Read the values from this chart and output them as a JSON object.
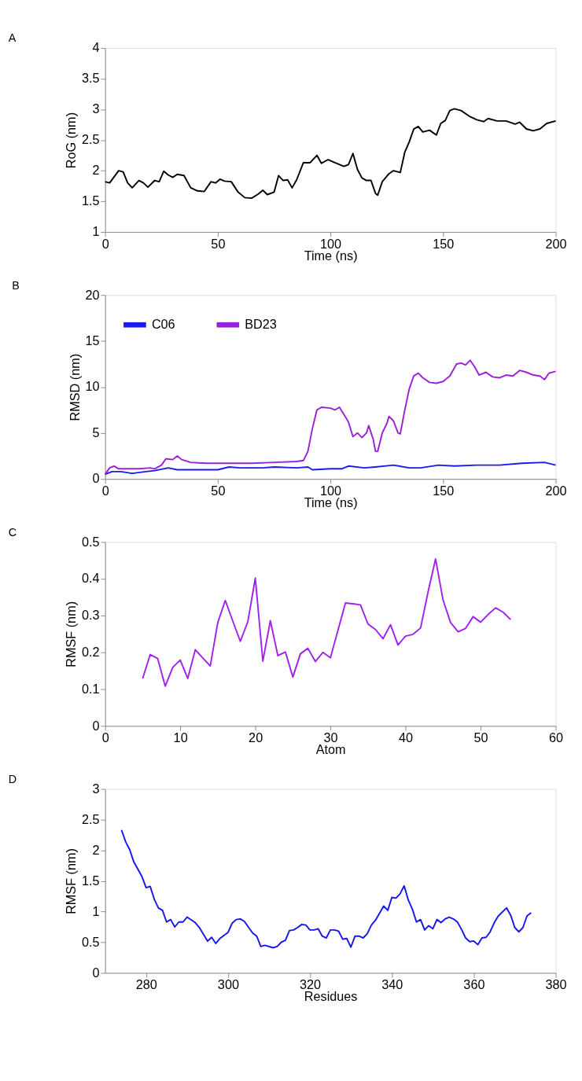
{
  "chart_data": [
    {
      "type": "line",
      "title": "A",
      "xlabel": "Time (ns)",
      "ylabel": "RoG (nm)",
      "xlim": [
        0,
        200
      ],
      "ylim": [
        1,
        4
      ],
      "xticks": [
        0,
        50,
        100,
        150,
        200
      ],
      "yticks": [
        1,
        1.5,
        2,
        2.5,
        3,
        3.5,
        4
      ],
      "grid": false,
      "legend": false,
      "series": [
        {
          "color": "#000000",
          "x": [
            0,
            2,
            4,
            6,
            8,
            10,
            12,
            15,
            17,
            19,
            22,
            24,
            26,
            28,
            30,
            32,
            35,
            38,
            41,
            44,
            47,
            49,
            51,
            53,
            56,
            59,
            62,
            65,
            68,
            70,
            72,
            75,
            77,
            79,
            81,
            83,
            85,
            88,
            91,
            94,
            96,
            99,
            102,
            106,
            108,
            110,
            112,
            114,
            116,
            118,
            120,
            121,
            123,
            126,
            128,
            131,
            133,
            135,
            137,
            139,
            141,
            144,
            147,
            149,
            151,
            153,
            155,
            158,
            162,
            165,
            168,
            170,
            174,
            178,
            182,
            184,
            187,
            190,
            193,
            196,
            200
          ],
          "values": [
            1.82,
            1.8,
            1.9,
            2.0,
            1.98,
            1.8,
            1.72,
            1.84,
            1.8,
            1.73,
            1.84,
            1.82,
            1.99,
            1.93,
            1.89,
            1.94,
            1.92,
            1.72,
            1.67,
            1.66,
            1.82,
            1.8,
            1.86,
            1.83,
            1.82,
            1.65,
            1.56,
            1.55,
            1.62,
            1.68,
            1.61,
            1.65,
            1.92,
            1.84,
            1.85,
            1.72,
            1.85,
            2.13,
            2.13,
            2.25,
            2.12,
            2.18,
            2.13,
            2.07,
            2.1,
            2.28,
            2.02,
            1.88,
            1.84,
            1.84,
            1.63,
            1.6,
            1.82,
            1.95,
            2.0,
            1.97,
            2.3,
            2.47,
            2.68,
            2.72,
            2.63,
            2.66,
            2.58,
            2.77,
            2.82,
            2.98,
            3.01,
            2.98,
            2.88,
            2.83,
            2.8,
            2.85,
            2.81,
            2.81,
            2.76,
            2.79,
            2.68,
            2.65,
            2.68,
            2.77,
            2.81
          ]
        }
      ]
    },
    {
      "type": "line",
      "title": "B",
      "xlabel": "Time (ns)",
      "ylabel": "RMSD (nm)",
      "xlim": [
        0,
        200
      ],
      "ylim": [
        0,
        20
      ],
      "xticks": [
        0,
        50,
        100,
        150,
        200
      ],
      "yticks": [
        0,
        5,
        10,
        15,
        20
      ],
      "grid": false,
      "legend": "top left",
      "series": [
        {
          "name": "C06",
          "color": "#1a1aee",
          "x": [
            0,
            3,
            7,
            12,
            18,
            22,
            28,
            32,
            40,
            50,
            55,
            60,
            70,
            75,
            85,
            90,
            92,
            100,
            105,
            108,
            115,
            120,
            128,
            135,
            140,
            148,
            155,
            165,
            175,
            185,
            195,
            200
          ],
          "values": [
            0.5,
            0.8,
            0.8,
            0.6,
            0.8,
            0.9,
            1.2,
            1.0,
            1.0,
            1.0,
            1.3,
            1.2,
            1.2,
            1.3,
            1.2,
            1.3,
            1.0,
            1.1,
            1.1,
            1.4,
            1.2,
            1.3,
            1.5,
            1.2,
            1.2,
            1.5,
            1.4,
            1.5,
            1.5,
            1.7,
            1.8,
            1.5
          ]
        },
        {
          "name": "BD23",
          "color": "#9b1fd8",
          "x": [
            0,
            2,
            4,
            6,
            10,
            15,
            20,
            22,
            25,
            27,
            30,
            32,
            34,
            38,
            45,
            55,
            65,
            75,
            85,
            88,
            90,
            92,
            94,
            96,
            100,
            102,
            104,
            106,
            108,
            110,
            112,
            114,
            116,
            117,
            119,
            120,
            121,
            123,
            125,
            126,
            128,
            130,
            131,
            133,
            135,
            137,
            139,
            141,
            144,
            147,
            150,
            153,
            156,
            158,
            160,
            162,
            164,
            166,
            169,
            172,
            175,
            178,
            181,
            184,
            187,
            190,
            193,
            195,
            197,
            200
          ],
          "values": [
            0.5,
            1.2,
            1.4,
            1.1,
            1.1,
            1.1,
            1.2,
            1.1,
            1.5,
            2.2,
            2.1,
            2.5,
            2.1,
            1.8,
            1.7,
            1.7,
            1.7,
            1.8,
            1.9,
            2.0,
            3.0,
            5.5,
            7.5,
            7.8,
            7.7,
            7.5,
            7.8,
            7.0,
            6.2,
            4.6,
            5.0,
            4.5,
            5.0,
            5.8,
            4.3,
            3.0,
            3.0,
            5.0,
            6.0,
            6.8,
            6.3,
            5.0,
            4.9,
            7.5,
            9.8,
            11.2,
            11.5,
            11.0,
            10.5,
            10.4,
            10.6,
            11.2,
            12.5,
            12.6,
            12.4,
            12.9,
            12.2,
            11.3,
            11.6,
            11.1,
            11.0,
            11.3,
            11.2,
            11.8,
            11.6,
            11.3,
            11.2,
            10.8,
            11.5,
            11.7
          ]
        }
      ]
    },
    {
      "type": "line",
      "title": "C",
      "xlabel": "Atom",
      "ylabel": "RMSF (nm)",
      "xlim": [
        0,
        60
      ],
      "ylim": [
        0,
        0.5
      ],
      "xticks": [
        0,
        10,
        20,
        30,
        40,
        50,
        60
      ],
      "yticks": [
        0,
        0.1,
        0.2,
        0.3,
        0.4,
        0.5
      ],
      "grid": false,
      "legend": false,
      "series": [
        {
          "color": "#a020f0",
          "x": [
            5,
            6,
            7,
            8,
            9,
            10,
            11,
            12,
            13,
            14,
            15,
            16,
            17,
            18,
            19,
            20,
            21,
            22,
            23,
            24,
            25,
            26,
            27,
            28,
            29,
            30,
            31,
            32,
            33,
            34,
            35,
            36,
            37,
            38,
            39,
            40,
            41,
            42,
            43,
            44,
            45,
            46,
            47,
            48,
            49,
            50,
            51,
            52,
            53,
            54
          ],
          "values": [
            0.129,
            0.194,
            0.183,
            0.108,
            0.159,
            0.179,
            0.129,
            0.207,
            0.185,
            0.163,
            0.281,
            0.341,
            0.285,
            0.23,
            0.283,
            0.402,
            0.176,
            0.286,
            0.191,
            0.201,
            0.133,
            0.196,
            0.211,
            0.175,
            0.2,
            0.185,
            0.26,
            0.334,
            0.332,
            0.329,
            0.277,
            0.262,
            0.237,
            0.275,
            0.22,
            0.244,
            0.249,
            0.266,
            0.364,
            0.454,
            0.342,
            0.281,
            0.256,
            0.265,
            0.297,
            0.282,
            0.303,
            0.321,
            0.309,
            0.289
          ]
        }
      ]
    },
    {
      "type": "line",
      "title": "D",
      "xlabel": "Residues",
      "ylabel": "RMSF (nm)",
      "xlim": [
        270,
        380
      ],
      "ylim": [
        0,
        3
      ],
      "xticks": [
        280,
        300,
        320,
        340,
        360,
        380
      ],
      "yticks": [
        0,
        0.5,
        1,
        1.5,
        2,
        2.5,
        3
      ],
      "grid": false,
      "legend": false,
      "series": [
        {
          "color": "#1515f0",
          "x": [
            274,
            275,
            276,
            277,
            279,
            280,
            281,
            282,
            283,
            284,
            285,
            286,
            287,
            288,
            289,
            290,
            292,
            293,
            295,
            296,
            297,
            298,
            300,
            301,
            302,
            303,
            304,
            306,
            307,
            308,
            309,
            311,
            312,
            313,
            314,
            315,
            316,
            317,
            318,
            319,
            320,
            321,
            322,
            323,
            324,
            325,
            326,
            327,
            328,
            329,
            330,
            331,
            332,
            333,
            334,
            335,
            336,
            338,
            339,
            340,
            341,
            342,
            343,
            344,
            345,
            346,
            347,
            348,
            349,
            350,
            351,
            352,
            353,
            354,
            355,
            356,
            357,
            358,
            359,
            360,
            361,
            362,
            363,
            364,
            365,
            366,
            368,
            369,
            370,
            371,
            372,
            373,
            374
          ],
          "values": [
            2.33,
            2.14,
            2.01,
            1.81,
            1.57,
            1.39,
            1.41,
            1.2,
            1.06,
            1.02,
            0.83,
            0.87,
            0.75,
            0.83,
            0.83,
            0.91,
            0.82,
            0.74,
            0.52,
            0.58,
            0.48,
            0.56,
            0.66,
            0.81,
            0.87,
            0.88,
            0.84,
            0.65,
            0.6,
            0.43,
            0.45,
            0.41,
            0.43,
            0.5,
            0.53,
            0.69,
            0.7,
            0.74,
            0.79,
            0.78,
            0.7,
            0.7,
            0.72,
            0.6,
            0.57,
            0.7,
            0.7,
            0.68,
            0.55,
            0.56,
            0.42,
            0.6,
            0.6,
            0.57,
            0.64,
            0.78,
            0.86,
            1.09,
            1.02,
            1.23,
            1.22,
            1.29,
            1.42,
            1.19,
            1.04,
            0.83,
            0.87,
            0.7,
            0.77,
            0.72,
            0.87,
            0.82,
            0.88,
            0.91,
            0.88,
            0.83,
            0.71,
            0.57,
            0.51,
            0.52,
            0.46,
            0.57,
            0.58,
            0.67,
            0.82,
            0.93,
            1.06,
            0.94,
            0.74,
            0.67,
            0.74,
            0.93,
            0.98
          ]
        }
      ]
    }
  ]
}
